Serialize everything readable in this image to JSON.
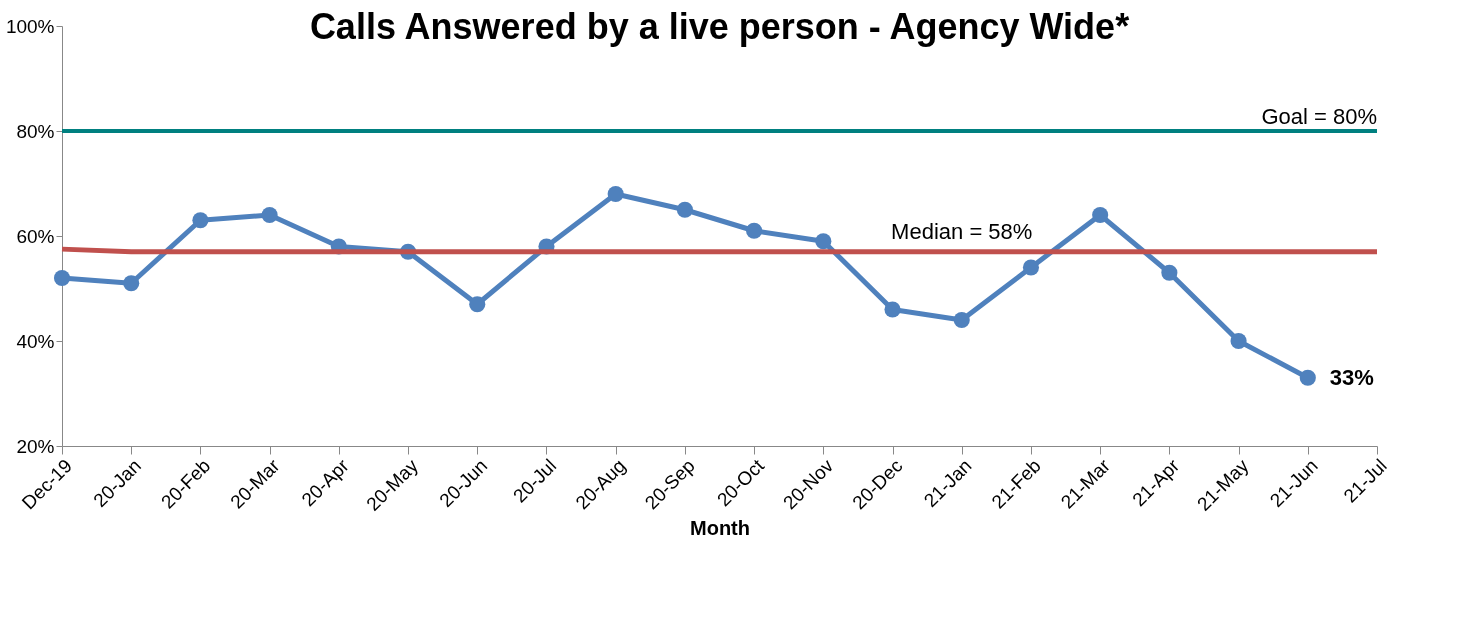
{
  "chart_data": {
    "type": "line",
    "title": "Calls Answered by a live person - Agency Wide*",
    "xlabel": "Month",
    "categories": [
      "Dec-19",
      "20-Jan",
      "20-Feb",
      "20-Mar",
      "20-Apr",
      "20-May",
      "20-Jun",
      "20-Jul",
      "20-Aug",
      "20-Sep",
      "20-Oct",
      "20-Nov",
      "20-Dec",
      "21-Jan",
      "21-Feb",
      "21-Mar",
      "21-Apr",
      "21-May",
      "21-Jun",
      "21-Jul"
    ],
    "series": [
      {
        "color": "#4f81bd",
        "marker": "circle",
        "values": [
          52,
          51,
          63,
          64,
          58,
          57,
          47,
          58,
          68,
          65,
          61,
          59,
          46,
          44,
          54,
          64,
          53,
          40,
          33,
          null
        ],
        "value_labels": [
          null,
          null,
          null,
          null,
          null,
          null,
          null,
          null,
          null,
          null,
          null,
          null,
          null,
          null,
          null,
          null,
          null,
          null,
          "33%",
          null
        ]
      },
      {
        "color": "#c0504d",
        "marker": "none",
        "values": [
          57.5,
          57,
          57,
          57,
          57,
          57,
          57,
          57,
          57,
          57,
          57,
          57,
          57,
          57,
          57,
          57,
          57,
          57,
          57,
          57
        ]
      }
    ],
    "ref_lines": [
      {
        "axis": "y",
        "value": 80,
        "label": "Goal = 80%",
        "color": "#008080"
      }
    ],
    "annotations": [
      {
        "text": "Median = 58%",
        "x": "21-Jan",
        "y": 57
      }
    ],
    "ylim": [
      20,
      100
    ],
    "yticks": [
      {
        "value": 20,
        "label": "20%"
      },
      {
        "value": 40,
        "label": "40%"
      },
      {
        "value": 60,
        "label": "60%"
      },
      {
        "value": 80,
        "label": "80%"
      },
      {
        "value": 100,
        "label": "100%"
      }
    ],
    "grid": false,
    "line_style": "solid"
  }
}
